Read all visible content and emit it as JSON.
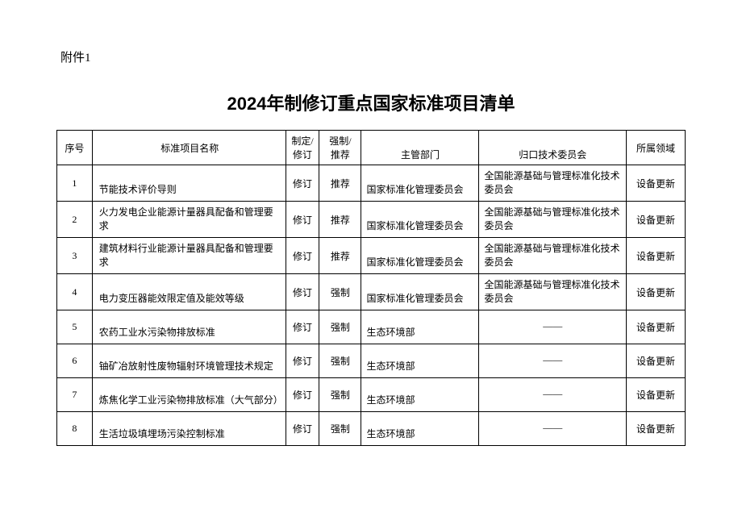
{
  "attachment": "附件1",
  "title": "2024年制修订重点国家标准项目清单",
  "columns": {
    "seq": "序号",
    "name": "标准项目名称",
    "type": "制定/修订",
    "mandatory": "强制/推荐",
    "department": "主管部门",
    "committee": "归口技术委员会",
    "domain": "所属领域"
  },
  "rows": [
    {
      "seq": "1",
      "name": "节能技术评价导则",
      "type": "修订",
      "mandatory": "推荐",
      "department": "国家标准化管理委员会",
      "committee": "全国能源基础与管理标准化技术委员会",
      "domain": "设备更新"
    },
    {
      "seq": "2",
      "name": "火力发电企业能源计量器具配备和管理要求",
      "type": "修订",
      "mandatory": "推荐",
      "department": "国家标准化管理委员会",
      "committee": "全国能源基础与管理标准化技术委员会",
      "domain": "设备更新"
    },
    {
      "seq": "3",
      "name": "建筑材料行业能源计量器具配备和管理要求",
      "type": "修订",
      "mandatory": "推荐",
      "department": "国家标准化管理委员会",
      "committee": "全国能源基础与管理标准化技术委员会",
      "domain": "设备更新"
    },
    {
      "seq": "4",
      "name": "电力变压器能效限定值及能效等级",
      "type": "修订",
      "mandatory": "强制",
      "department": "国家标准化管理委员会",
      "committee": "全国能源基础与管理标准化技术委员会",
      "domain": "设备更新"
    },
    {
      "seq": "5",
      "name": "农药工业水污染物排放标准",
      "type": "修订",
      "mandatory": "强制",
      "department": "生态环境部",
      "committee": "——",
      "domain": "设备更新"
    },
    {
      "seq": "6",
      "name": "铀矿冶放射性废物辐射环境管理技术规定",
      "type": "修订",
      "mandatory": "强制",
      "department": "生态环境部",
      "committee": "——",
      "domain": "设备更新"
    },
    {
      "seq": "7",
      "name": "炼焦化学工业污染物排放标准（大气部分）",
      "type": "修订",
      "mandatory": "强制",
      "department": "生态环境部",
      "committee": "——",
      "domain": "设备更新"
    },
    {
      "seq": "8",
      "name": "生活垃圾填埋场污染控制标准",
      "type": "修订",
      "mandatory": "强制",
      "department": "生态环境部",
      "committee": "——",
      "domain": "设备更新"
    }
  ]
}
